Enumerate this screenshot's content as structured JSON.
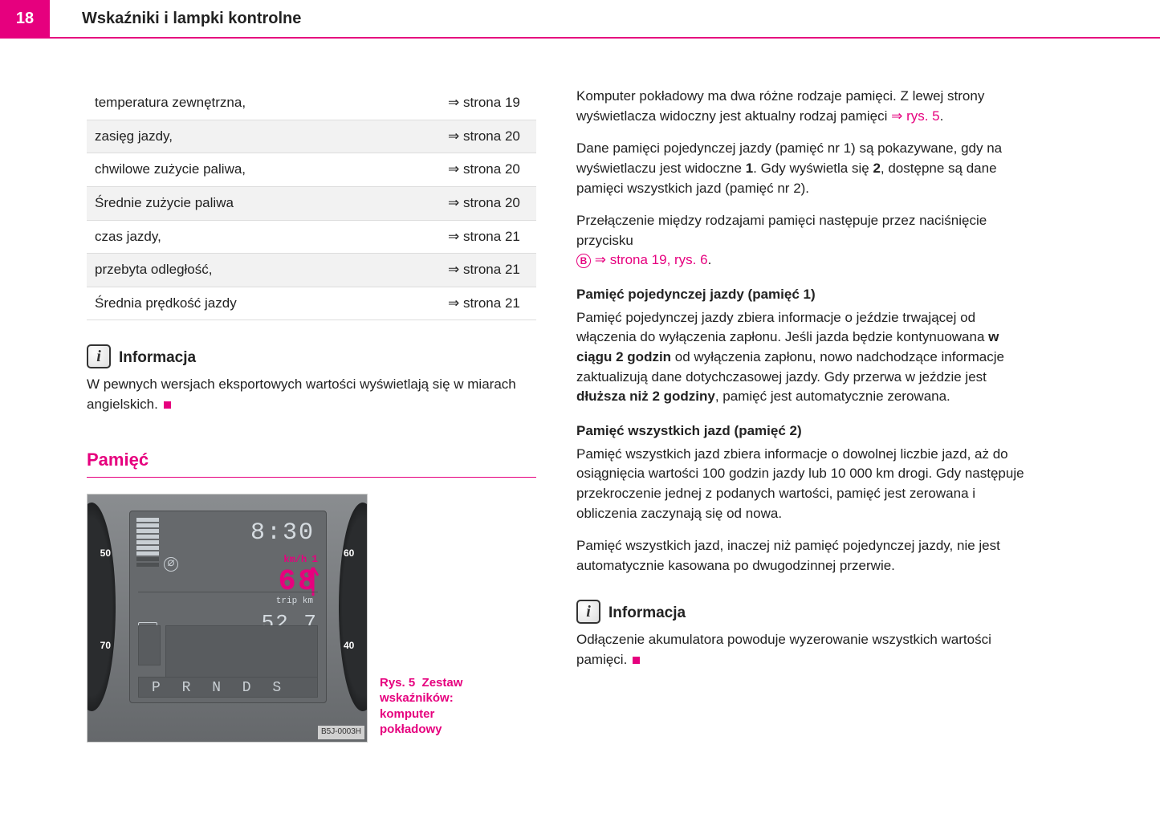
{
  "page_number": "18",
  "header_title": "Wskaźniki i lampki kontrolne",
  "table_rows": [
    {
      "label": "temperatura zewnętrzna,",
      "ref": "⇒ strona 19"
    },
    {
      "label": "zasięg jazdy,",
      "ref": "⇒ strona 20"
    },
    {
      "label": "chwilowe zużycie paliwa,",
      "ref": "⇒ strona 20"
    },
    {
      "label": "Średnie zużycie paliwa",
      "ref": "⇒ strona 20"
    },
    {
      "label": "czas jazdy,",
      "ref": "⇒ strona 21"
    },
    {
      "label": "przebyta odległość,",
      "ref": "⇒ strona 21"
    },
    {
      "label": "Średnia prędkość jazdy",
      "ref": "⇒ strona 21"
    }
  ],
  "info1_title": "Informacja",
  "info1_text": "W pewnych wersjach eksportowych wartości wyświetlają się w miarach angielskich.",
  "section_title": "Pamięć",
  "figure": {
    "time": "8:30",
    "speed_unit": "km/h",
    "memory_num": "1",
    "speed_val": "68",
    "avg_symbol": "∅",
    "trip_label": "trip km",
    "trip_val": "52.7",
    "gears": "P R N D S",
    "img_code": "B5J-0003H",
    "left_ticks": [
      "50",
      "70"
    ],
    "right_ticks": [
      "60",
      "40"
    ],
    "caption_prefix": "Rys. 5",
    "caption_text": "Zestaw wskaźników: komputer pokładowy"
  },
  "right_col": {
    "p1a": "Komputer pokładowy ma dwa różne rodzaje pamięci. Z lewej strony wyświetlacza widoczny jest aktualny rodzaj pamięci ",
    "p1_link": "⇒ rys. 5",
    "p2a": "Dane pamięci pojedynczej jazdy (pamięć nr 1) są pokazywane, gdy na wyświetlaczu jest widoczne ",
    "p2b": "1",
    "p2c": ". Gdy wyświetla się ",
    "p2d": "2",
    "p2e": ", dostępne są dane pamięci wszystkich jazd (pamięć nr 2).",
    "p3a": "Przełączenie między rodzajami pamięci następuje przez naciśnięcie przycisku ",
    "p3_circ": "B",
    "p3_link": " ⇒ strona 19, rys. 6",
    "h1": "Pamięć pojedynczej jazdy (pamięć 1)",
    "p4a": "Pamięć pojedynczej jazdy zbiera informacje o jeździe trwającej od włączenia do wyłączenia zapłonu. Jeśli jazda będzie kontynuowana ",
    "p4b": "w ciągu 2 godzin",
    "p4c": " od wyłączenia zapłonu, nowo nadchodzące informacje zaktualizują dane dotychczasowej jazdy. Gdy przerwa w jeździe jest ",
    "p4d": "dłuższa niż 2 godziny",
    "p4e": ", pamięć jest automatycznie zerowana.",
    "h2": "Pamięć wszystkich jazd (pamięć 2)",
    "p5": "Pamięć wszystkich jazd zbiera informacje o dowolnej liczbie jazd, aż do osiągnięcia wartości 100 godzin jazdy lub 10 000 km drogi. Gdy następuje przekroczenie jednej z podanych wartości, pamięć jest zerowana i obliczenia zaczynają się od nowa.",
    "p6": "Pamięć wszystkich jazd, inaczej niż pamięć pojedynczej jazdy, nie jest automatycznie kasowana po dwugodzinnej przerwie.",
    "info2_title": "Informacja",
    "info2_text": "Odłączenie akumulatora powoduje wyzerowanie wszystkich wartości pamięci."
  },
  "colors": {
    "brand": "#e6007e",
    "text": "#222222",
    "row_alt": "#f2f2f2"
  }
}
